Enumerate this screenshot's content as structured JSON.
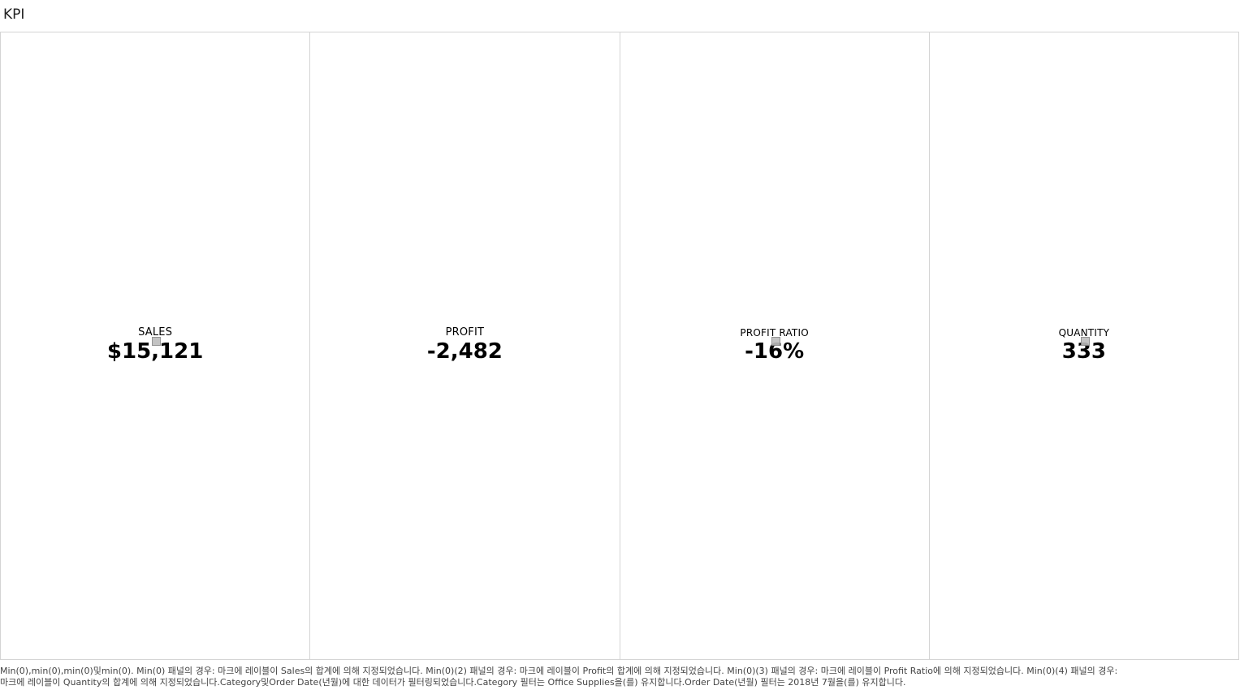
{
  "title": "KPI",
  "panels": [
    {
      "label": "SALES",
      "value": "$15,121"
    },
    {
      "label": "PROFIT",
      "value": "-2,482"
    },
    {
      "label": "PROFIT RATIO",
      "value": "-16%"
    },
    {
      "label": "QUANTITY",
      "value": "333"
    }
  ],
  "caption": {
    "line1": "Min(0),min(0),min(0)및min(0). Min(0) 패널의 경우: 마크에 레이블이 Sales의 합계에 의해 지정되었습니다. Min(0)(2) 패널의 경우: 마크에 레이블이 Profit의 합계에 의해 지정되었습니다. Min(0)(3) 패널의 경우: 마크에 레이블이 Profit Ratio에 의해 지정되었습니다. Min(0)(4) 패널의 경우:",
    "line2": "마크에 레이블이 Quantity의 합계에 의해 지정되었습니다.Category및Order Date(년월)에 대한 데이터가 필터링되었습니다.Category 필터는 Office Supplies을(를) 유지합니다.Order Date(년월) 필터는 2018년 7월을(를) 유지합니다."
  }
}
